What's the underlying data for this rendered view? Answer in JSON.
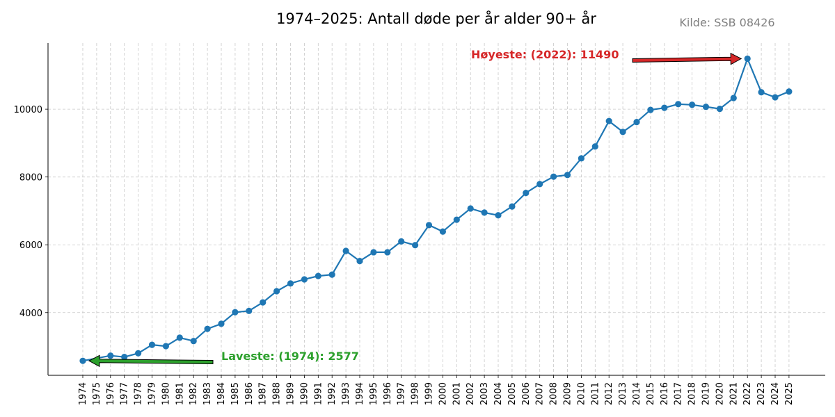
{
  "chart_data": {
    "type": "line",
    "title": "1974–2025: Antall døde per år alder 90+ år",
    "source": "Kilde: SSB 08426",
    "xlabel": "",
    "ylabel": "",
    "ylim": [
      2150,
      11950
    ],
    "y_ticks": [
      4000,
      6000,
      8000,
      10000
    ],
    "grid": true,
    "series_color": "#1f77b4",
    "x": [
      "1974",
      "1975",
      "1976",
      "1977",
      "1978",
      "1979",
      "1980",
      "1981",
      "1982",
      "1983",
      "1984",
      "1985",
      "1986",
      "1987",
      "1988",
      "1989",
      "1990",
      "1991",
      "1992",
      "1993",
      "1994",
      "1995",
      "1996",
      "1997",
      "1998",
      "1999",
      "2000",
      "2001",
      "2002",
      "2003",
      "2004",
      "2005",
      "2006",
      "2007",
      "2008",
      "2009",
      "2010",
      "2011",
      "2012",
      "2013",
      "2014",
      "2015",
      "2016",
      "2017",
      "2018",
      "2019",
      "2020",
      "2021",
      "2022",
      "2023",
      "2024",
      "2025"
    ],
    "series": [
      {
        "values": [
          2577,
          null,
          2730,
          2690,
          2800,
          3050,
          3010,
          3260,
          3160,
          3520,
          3670,
          4010,
          4050,
          4300,
          4630,
          4860,
          4980,
          5080,
          5120,
          5820,
          5520,
          5780,
          5780,
          6100,
          5990,
          6580,
          6390,
          6740,
          7070,
          6950,
          6870,
          7130,
          7530,
          7790,
          8010,
          8060,
          8550,
          8900,
          9650,
          9330,
          9620,
          9980,
          10040,
          10150,
          10130,
          10070,
          10010,
          10330,
          11490,
          10500,
          10350,
          10520
        ]
      }
    ],
    "annotations": {
      "highest": {
        "text": "Høyeste: (2022): 11490",
        "year": "2022",
        "value": 11490,
        "color": "#d62728"
      },
      "lowest": {
        "text": "Laveste: (1974): 2577",
        "year": "1974",
        "value": 2577,
        "color": "#2ca02c"
      }
    }
  }
}
